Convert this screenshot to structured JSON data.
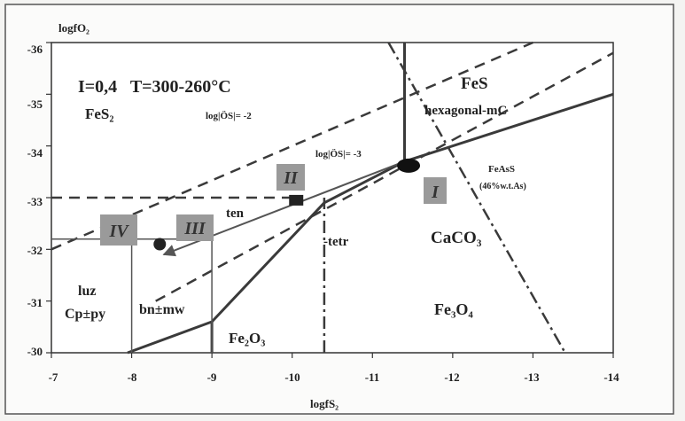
{
  "chart_data": {
    "type": "line",
    "xlabel": "logfS₂",
    "ylabel": "logfO₂",
    "x_ticks": [
      "-7",
      "-8",
      "-9",
      "-10",
      "-11",
      "-12",
      "-13",
      "-14"
    ],
    "y_ticks": [
      "-36",
      "-35",
      "-34",
      "-33",
      "-32",
      "-31",
      "-30"
    ],
    "xlim": [
      -7,
      -14
    ],
    "ylim": [
      -30,
      -36
    ],
    "grid": false,
    "annotations": {
      "conditions": "I=0,4   T=300-260°C",
      "fes2": "FeS₂",
      "fes": "FeS",
      "hexagonal": "hexagonal-mC",
      "logos2": "log|ÖS|= -2",
      "logos3": "log|ÖS|= -3",
      "feass": "FeAsS",
      "feass_pct": "(46%w.t.As)",
      "caco3": "CaCO₃",
      "fe3o4": "Fe₃O₄",
      "fe2o3": "Fe₂O₃",
      "ten": "ten",
      "tetr": "-tetr",
      "luz": "luz",
      "cp_py": "Cp±py",
      "bn_mw": "bn±mw"
    },
    "stages": [
      "I",
      "II",
      "III",
      "IV"
    ],
    "series": [
      {
        "style": "solid-thick",
        "x": [
          -7.95,
          -9.0,
          -10.4,
          -11.4
        ],
        "y": [
          -30,
          -30.6,
          -32.9,
          -33.7
        ]
      },
      {
        "style": "solid-thick",
        "x": [
          -11.4,
          -14
        ],
        "y": [
          -33.7,
          -35
        ]
      },
      {
        "style": "solid-thick",
        "x": [
          -11.4,
          -11.4
        ],
        "y": [
          -33.7,
          -36.3
        ]
      },
      {
        "style": "solid-thick",
        "x": [
          -9.0,
          -9.0
        ],
        "y": [
          -30,
          -30.6
        ]
      },
      {
        "style": "dashed",
        "x": [
          -7,
          -13.0
        ],
        "y": [
          -32,
          -36.3
        ]
      },
      {
        "style": "dashed",
        "x": [
          -8.3,
          -14
        ],
        "y": [
          -31.0,
          -35.8
        ]
      },
      {
        "style": "dashed",
        "x": [
          -7,
          -10.1
        ],
        "y": [
          -33,
          -33
        ]
      },
      {
        "style": "dashdot",
        "x": [
          -11.2,
          -13.4
        ],
        "y": [
          -36.3,
          -30
        ]
      },
      {
        "style": "dashdot",
        "x": [
          -10.4,
          -10.4
        ],
        "y": [
          -30,
          -33
        ]
      },
      {
        "style": "thin",
        "x": [
          -7,
          -9.0,
          -9.0
        ],
        "y": [
          -32.2,
          -32.2,
          -30
        ]
      },
      {
        "style": "thin",
        "x": [
          -8.0,
          -8.0
        ],
        "y": [
          -30,
          -32.2
        ]
      },
      {
        "style": "arrow",
        "x": [
          -11.4,
          -8.4
        ],
        "y": [
          -33.7,
          -31.9
        ]
      }
    ]
  }
}
